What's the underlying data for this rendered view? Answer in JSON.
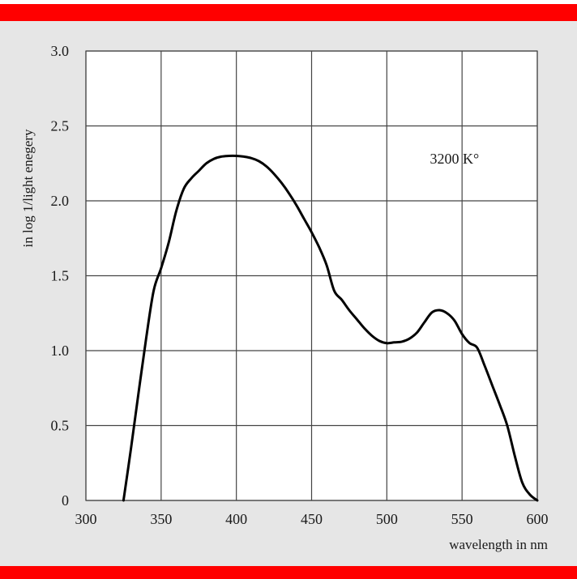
{
  "colors": {
    "band": "#ff0000",
    "panel": "#e6e6e6",
    "plot_bg": "#ffffff",
    "grid": "#444444",
    "curve": "#000000"
  },
  "chart_data": {
    "type": "line",
    "title": "",
    "xlabel": "wavelength  in nm",
    "ylabel": "in log 1/light enegery",
    "xlim": [
      300,
      600
    ],
    "ylim": [
      0,
      3.0
    ],
    "x_ticks": [
      300,
      350,
      400,
      450,
      500,
      550,
      600
    ],
    "x_tick_labels": [
      "300",
      "350",
      "400",
      "450",
      "500",
      "550",
      "600"
    ],
    "y_ticks": [
      0,
      0.5,
      1.0,
      1.5,
      2.0,
      2.5,
      3.0
    ],
    "y_tick_labels": [
      "0",
      "0.5",
      "1.0",
      "1.5",
      "2.0",
      "2.5",
      "3.0"
    ],
    "grid": true,
    "annotations": [
      {
        "text": "3200 K°",
        "x": 545,
        "y": 2.25
      }
    ],
    "series": [
      {
        "x": [
          325,
          330,
          335,
          340,
          345,
          350,
          355,
          360,
          365,
          370,
          375,
          380,
          385,
          390,
          395,
          400,
          405,
          410,
          415,
          420,
          425,
          430,
          435,
          440,
          445,
          450,
          455,
          460,
          465,
          470,
          475,
          480,
          485,
          490,
          495,
          500,
          505,
          510,
          515,
          520,
          525,
          530,
          535,
          540,
          545,
          550,
          555,
          560,
          565,
          570,
          575,
          580,
          585,
          590,
          595,
          600
        ],
        "y": [
          0.0,
          0.35,
          0.72,
          1.08,
          1.4,
          1.55,
          1.72,
          1.93,
          2.08,
          2.15,
          2.2,
          2.25,
          2.28,
          2.295,
          2.3,
          2.3,
          2.295,
          2.285,
          2.265,
          2.23,
          2.18,
          2.12,
          2.05,
          1.97,
          1.88,
          1.79,
          1.69,
          1.57,
          1.4,
          1.34,
          1.27,
          1.21,
          1.15,
          1.1,
          1.065,
          1.05,
          1.055,
          1.06,
          1.08,
          1.12,
          1.19,
          1.255,
          1.27,
          1.25,
          1.2,
          1.11,
          1.05,
          1.02,
          0.9,
          0.77,
          0.64,
          0.5,
          0.3,
          0.12,
          0.04,
          0.0
        ]
      }
    ]
  }
}
